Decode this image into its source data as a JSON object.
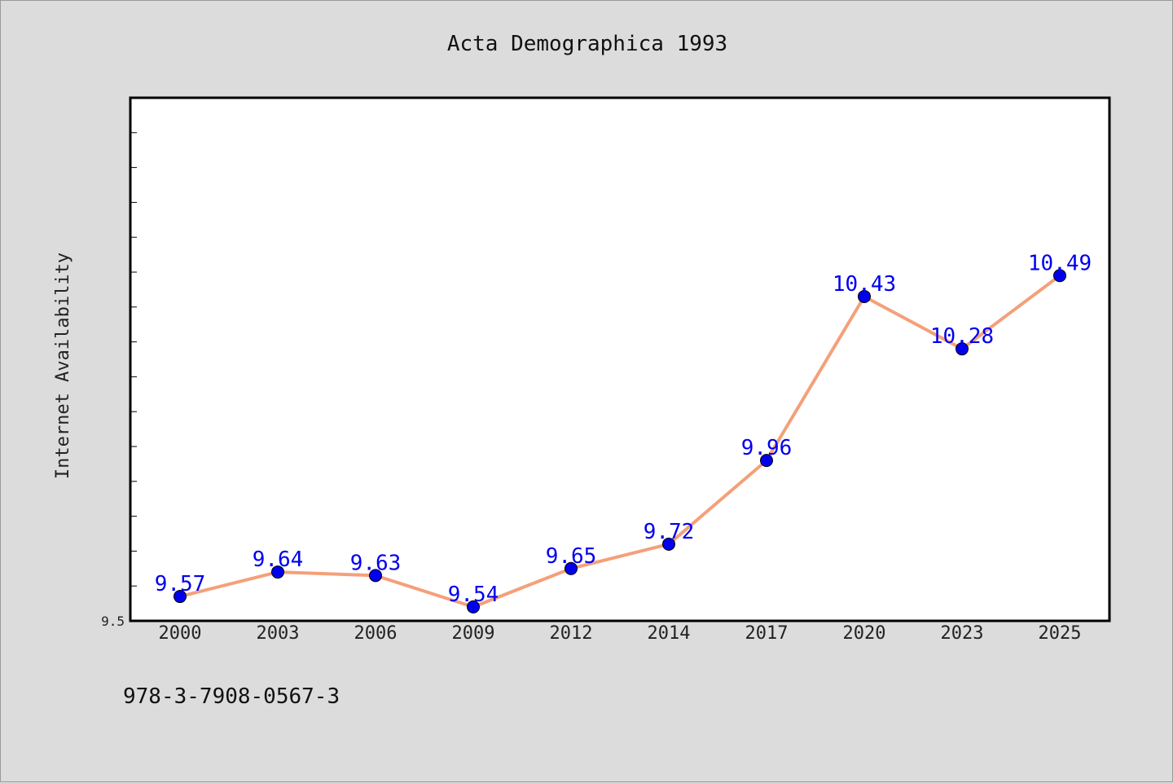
{
  "chart_data": {
    "type": "line",
    "title": "Acta Demographica 1993",
    "xlabel": "",
    "ylabel": "Internet Availability",
    "categories": [
      "2000",
      "2003",
      "2006",
      "2009",
      "2012",
      "2014",
      "2017",
      "2020",
      "2023",
      "2025"
    ],
    "series": [
      {
        "values": [
          9.57,
          9.64,
          9.63,
          9.54,
          9.65,
          9.72,
          9.96,
          10.43,
          10.28,
          10.49
        ]
      }
    ],
    "data_labels": [
      "9.57",
      "9.64",
      "9.63",
      "9.54",
      "9.65",
      "9.72",
      "9.96",
      "10.43",
      "10.28",
      "10.49"
    ],
    "ylim": [
      9.5,
      11.0
    ],
    "yticks_labeled": [
      "9.5"
    ],
    "grid": false,
    "colors": {
      "line": "#f4a07a",
      "marker": "#0000ee",
      "data_label": "#0000ee",
      "background": "#dcdcdc",
      "plot_background": "#ffffff"
    }
  },
  "footer": {
    "isbn": "978-3-7908-0567-3"
  }
}
